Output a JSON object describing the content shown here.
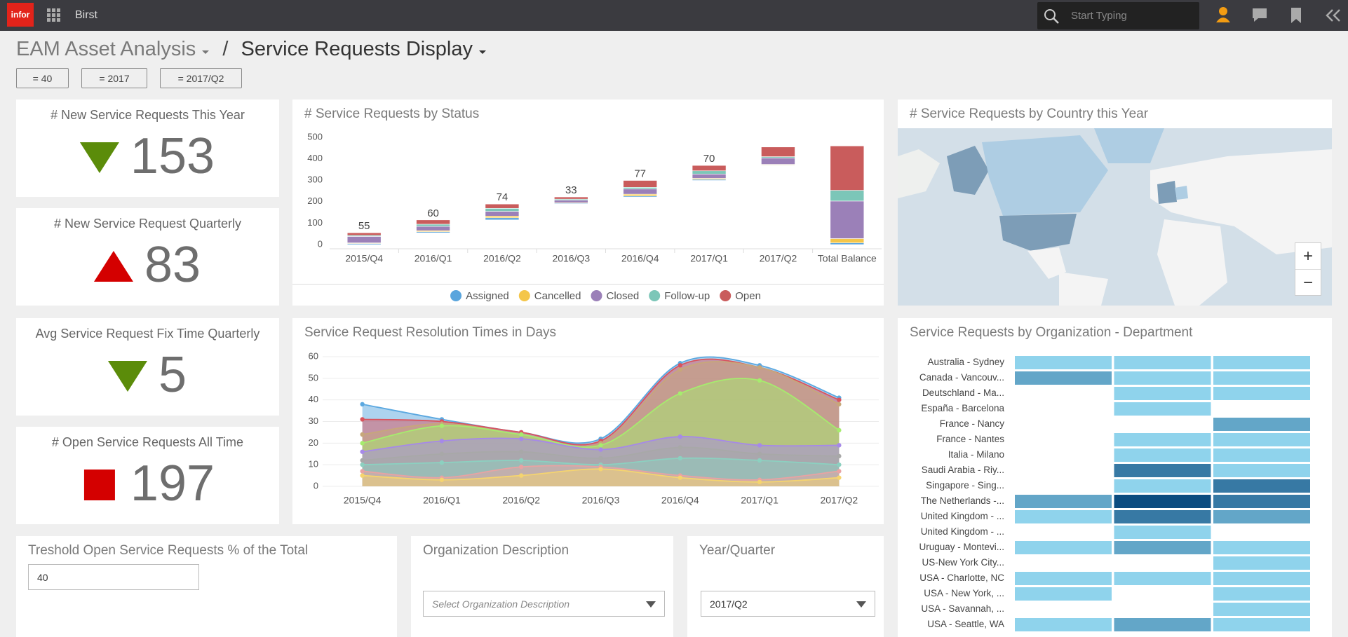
{
  "header": {
    "logo": "infor",
    "app": "Birst",
    "search_placeholder": "Start Typing"
  },
  "breadcrumb": {
    "parent": "EAM Asset Analysis",
    "separator": "/",
    "current": "Service Requests Display"
  },
  "filters": [
    "= 40",
    "= 2017",
    "= 2017/Q2"
  ],
  "kpis": [
    {
      "title": "# New Service Requests This Year",
      "value": 153,
      "indicator": "down",
      "color": "#5b8c0a"
    },
    {
      "title": "# New Service Request Quarterly",
      "value": 83,
      "indicator": "up",
      "color": "#d40000"
    },
    {
      "title": "Avg Service Request Fix Time Quarterly",
      "value": 5,
      "indicator": "down",
      "color": "#5b8c0a"
    },
    {
      "title": "# Open Service Requests All Time",
      "value": 197,
      "indicator": "square",
      "color": "#d40000"
    }
  ],
  "chart_data": [
    {
      "type": "waterfall",
      "title": "# Service Requests by Status",
      "categories": [
        "2015/Q4",
        "2016/Q1",
        "2016/Q2",
        "2016/Q3",
        "2016/Q4",
        "2017/Q1",
        "2017/Q2",
        "Total Balance"
      ],
      "series": [
        {
          "name": "Assigned",
          "color": "#5aa5dd",
          "values": [
            5,
            5,
            10,
            3,
            5,
            5,
            2,
            8
          ]
        },
        {
          "name": "Cancelled",
          "color": "#f4c64a",
          "values": [
            3,
            5,
            8,
            3,
            8,
            5,
            3,
            20
          ]
        },
        {
          "name": "Closed",
          "color": "#9b80b8",
          "values": [
            30,
            20,
            22,
            12,
            24,
            20,
            30,
            175
          ]
        },
        {
          "name": "Follow-up",
          "color": "#7cc6b8",
          "values": [
            5,
            10,
            14,
            5,
            8,
            15,
            6,
            50
          ]
        },
        {
          "name": "Open",
          "color": "#c95c5c",
          "values": [
            12,
            20,
            20,
            10,
            32,
            25,
            45,
            207
          ]
        }
      ],
      "totals": [
        55,
        60,
        74,
        33,
        77,
        70,
        null,
        null
      ],
      "ylim": [
        0,
        500
      ],
      "yticks": [
        0,
        100,
        200,
        300,
        400,
        500
      ],
      "legend": "bottom"
    },
    {
      "type": "area",
      "title": "Service Request Resolution Times in Days",
      "categories": [
        "2015/Q4",
        "2016/Q1",
        "2016/Q2",
        "2016/Q3",
        "2016/Q4",
        "2017/Q1",
        "2017/Q2"
      ],
      "series": [
        {
          "color": "#5ba8e0",
          "values": [
            38,
            31,
            25,
            22,
            57,
            56,
            41
          ]
        },
        {
          "color": "#d9545e",
          "values": [
            31,
            30,
            25,
            21,
            56,
            55,
            40
          ]
        },
        {
          "color": "#c7a77a",
          "values": [
            24,
            29,
            24,
            20,
            54,
            55,
            38
          ]
        },
        {
          "color": "#a6ec6e",
          "values": [
            20,
            28,
            24,
            19,
            43,
            49,
            26
          ]
        },
        {
          "color": "#a689e8",
          "values": [
            16,
            21,
            22,
            17,
            23,
            19,
            19
          ]
        },
        {
          "color": "#a8a8a8",
          "values": [
            12,
            15,
            16,
            13,
            18,
            15,
            14
          ]
        },
        {
          "color": "#8cd0c0",
          "values": [
            10,
            11,
            12,
            10,
            13,
            12,
            10
          ]
        },
        {
          "color": "#e8a3a3",
          "values": [
            7,
            4,
            9,
            9,
            5,
            3,
            7
          ]
        },
        {
          "color": "#f5d46f",
          "values": [
            5,
            3,
            5,
            8,
            4,
            2,
            4
          ]
        }
      ],
      "ylim": [
        0,
        60
      ],
      "yticks": [
        0,
        10,
        20,
        30,
        40,
        50,
        60
      ],
      "grid": true
    },
    {
      "type": "heatmap",
      "title": "Service Requests by Organization - Department",
      "rows": [
        "Australia - Sydney",
        "Canada - Vancouv...",
        "Deutschland - Ma...",
        "España - Barcelona",
        "France - Nancy",
        "France - Nantes",
        "Italia - Milano",
        "Saudi Arabia - Riy...",
        "Singapore  - Sing...",
        "The Netherlands -...",
        "United Kingdom - ...",
        "United Kingdom - ...",
        "Uruguay - Montevi...",
        "US-New York City...",
        "USA - Charlotte, NC",
        "USA - New York, ...",
        "USA - Savannah, ...",
        "USA - Seattle, WA"
      ],
      "values": [
        [
          1,
          1,
          1
        ],
        [
          2,
          1,
          1
        ],
        [
          null,
          1,
          1
        ],
        [
          null,
          1,
          null
        ],
        [
          null,
          null,
          2
        ],
        [
          null,
          1,
          1
        ],
        [
          null,
          1,
          1
        ],
        [
          null,
          3,
          1
        ],
        [
          null,
          1,
          3
        ],
        [
          2,
          4,
          3
        ],
        [
          1,
          3,
          2
        ],
        [
          null,
          1,
          null
        ],
        [
          1,
          2,
          1
        ],
        [
          null,
          null,
          1
        ],
        [
          1,
          1,
          1
        ],
        [
          1,
          null,
          1
        ],
        [
          null,
          null,
          1
        ],
        [
          1,
          2,
          1
        ]
      ],
      "vlim": [
        1,
        4
      ],
      "colors": [
        "#8fd3ec",
        "#0b4c80"
      ]
    }
  ],
  "map": {
    "title": "# Service Requests by Country this Year",
    "zoom_in": "+",
    "zoom_out": "−"
  },
  "prompts": {
    "threshold": {
      "title": "Treshold Open Service Requests % of the Total",
      "value": 40
    },
    "organization": {
      "title": "Organization Description",
      "placeholder": "Select Organization Description"
    },
    "year_quarter": {
      "title": "Year/Quarter",
      "value": "2017/Q2"
    }
  }
}
